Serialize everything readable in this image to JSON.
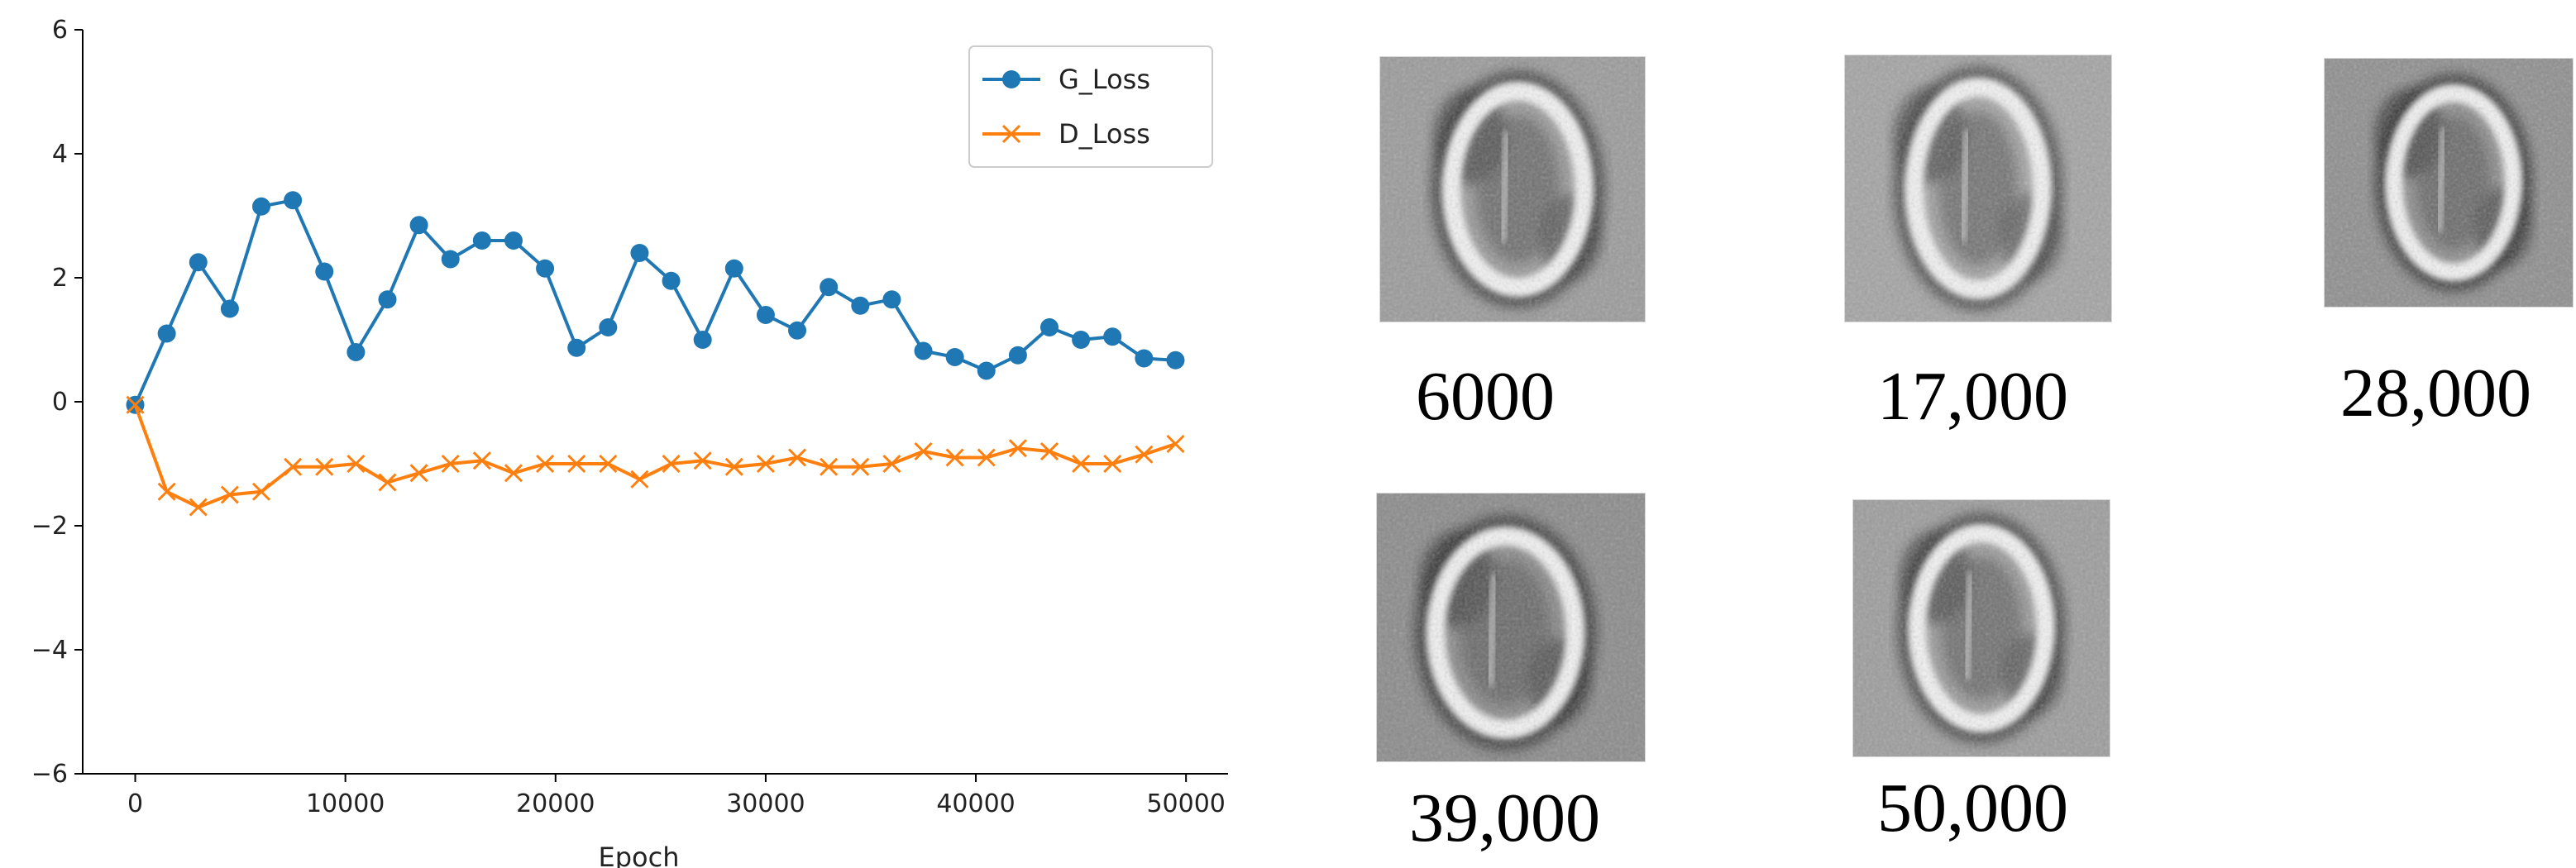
{
  "chart_data": {
    "type": "line",
    "xlabel": "Epoch",
    "ylabel": "",
    "xlim": [
      -2500,
      52000
    ],
    "ylim": [
      -6,
      6
    ],
    "xticks": [
      0,
      10000,
      20000,
      30000,
      40000,
      50000
    ],
    "yticks": [
      -6,
      -4,
      -2,
      0,
      2,
      4,
      6
    ],
    "grid": false,
    "legend": "top-right",
    "x": [
      0,
      1500,
      3000,
      4500,
      6000,
      7500,
      9000,
      10500,
      12000,
      13500,
      15000,
      16500,
      18000,
      19500,
      21000,
      22500,
      24000,
      25500,
      27000,
      28500,
      30000,
      31500,
      33000,
      34500,
      36000,
      37500,
      39000,
      40500,
      42000,
      43500,
      45000,
      46500,
      48000,
      49500
    ],
    "series": [
      {
        "name": "G_Loss",
        "color": "#1f77b4",
        "marker": "circle",
        "values": [
          -0.05,
          1.1,
          2.25,
          1.5,
          3.15,
          3.25,
          2.1,
          0.8,
          1.65,
          2.85,
          2.3,
          2.6,
          2.6,
          2.15,
          0.87,
          1.2,
          2.4,
          1.95,
          1.0,
          2.15,
          1.4,
          1.15,
          1.85,
          1.55,
          1.65,
          0.82,
          0.72,
          0.5,
          0.75,
          1.2,
          1.0,
          1.05,
          0.7,
          0.67
        ]
      },
      {
        "name": "D_Loss",
        "color": "#ff7f0e",
        "marker": "x",
        "values": [
          -0.05,
          -1.45,
          -1.7,
          -1.5,
          -1.45,
          -1.05,
          -1.05,
          -1.0,
          -1.3,
          -1.15,
          -1.0,
          -0.95,
          -1.15,
          -1.0,
          -1.0,
          -1.0,
          -1.25,
          -1.0,
          -0.95,
          -1.05,
          -1.0,
          -0.9,
          -1.05,
          -1.05,
          -1.0,
          -0.8,
          -0.9,
          -0.9,
          -0.75,
          -0.8,
          -1.0,
          -1.0,
          -0.85,
          -0.68
        ]
      }
    ]
  },
  "samples": [
    {
      "caption": "6000"
    },
    {
      "caption": "17,000"
    },
    {
      "caption": "28,000"
    },
    {
      "caption": "39,000"
    },
    {
      "caption": "50,000"
    }
  ]
}
